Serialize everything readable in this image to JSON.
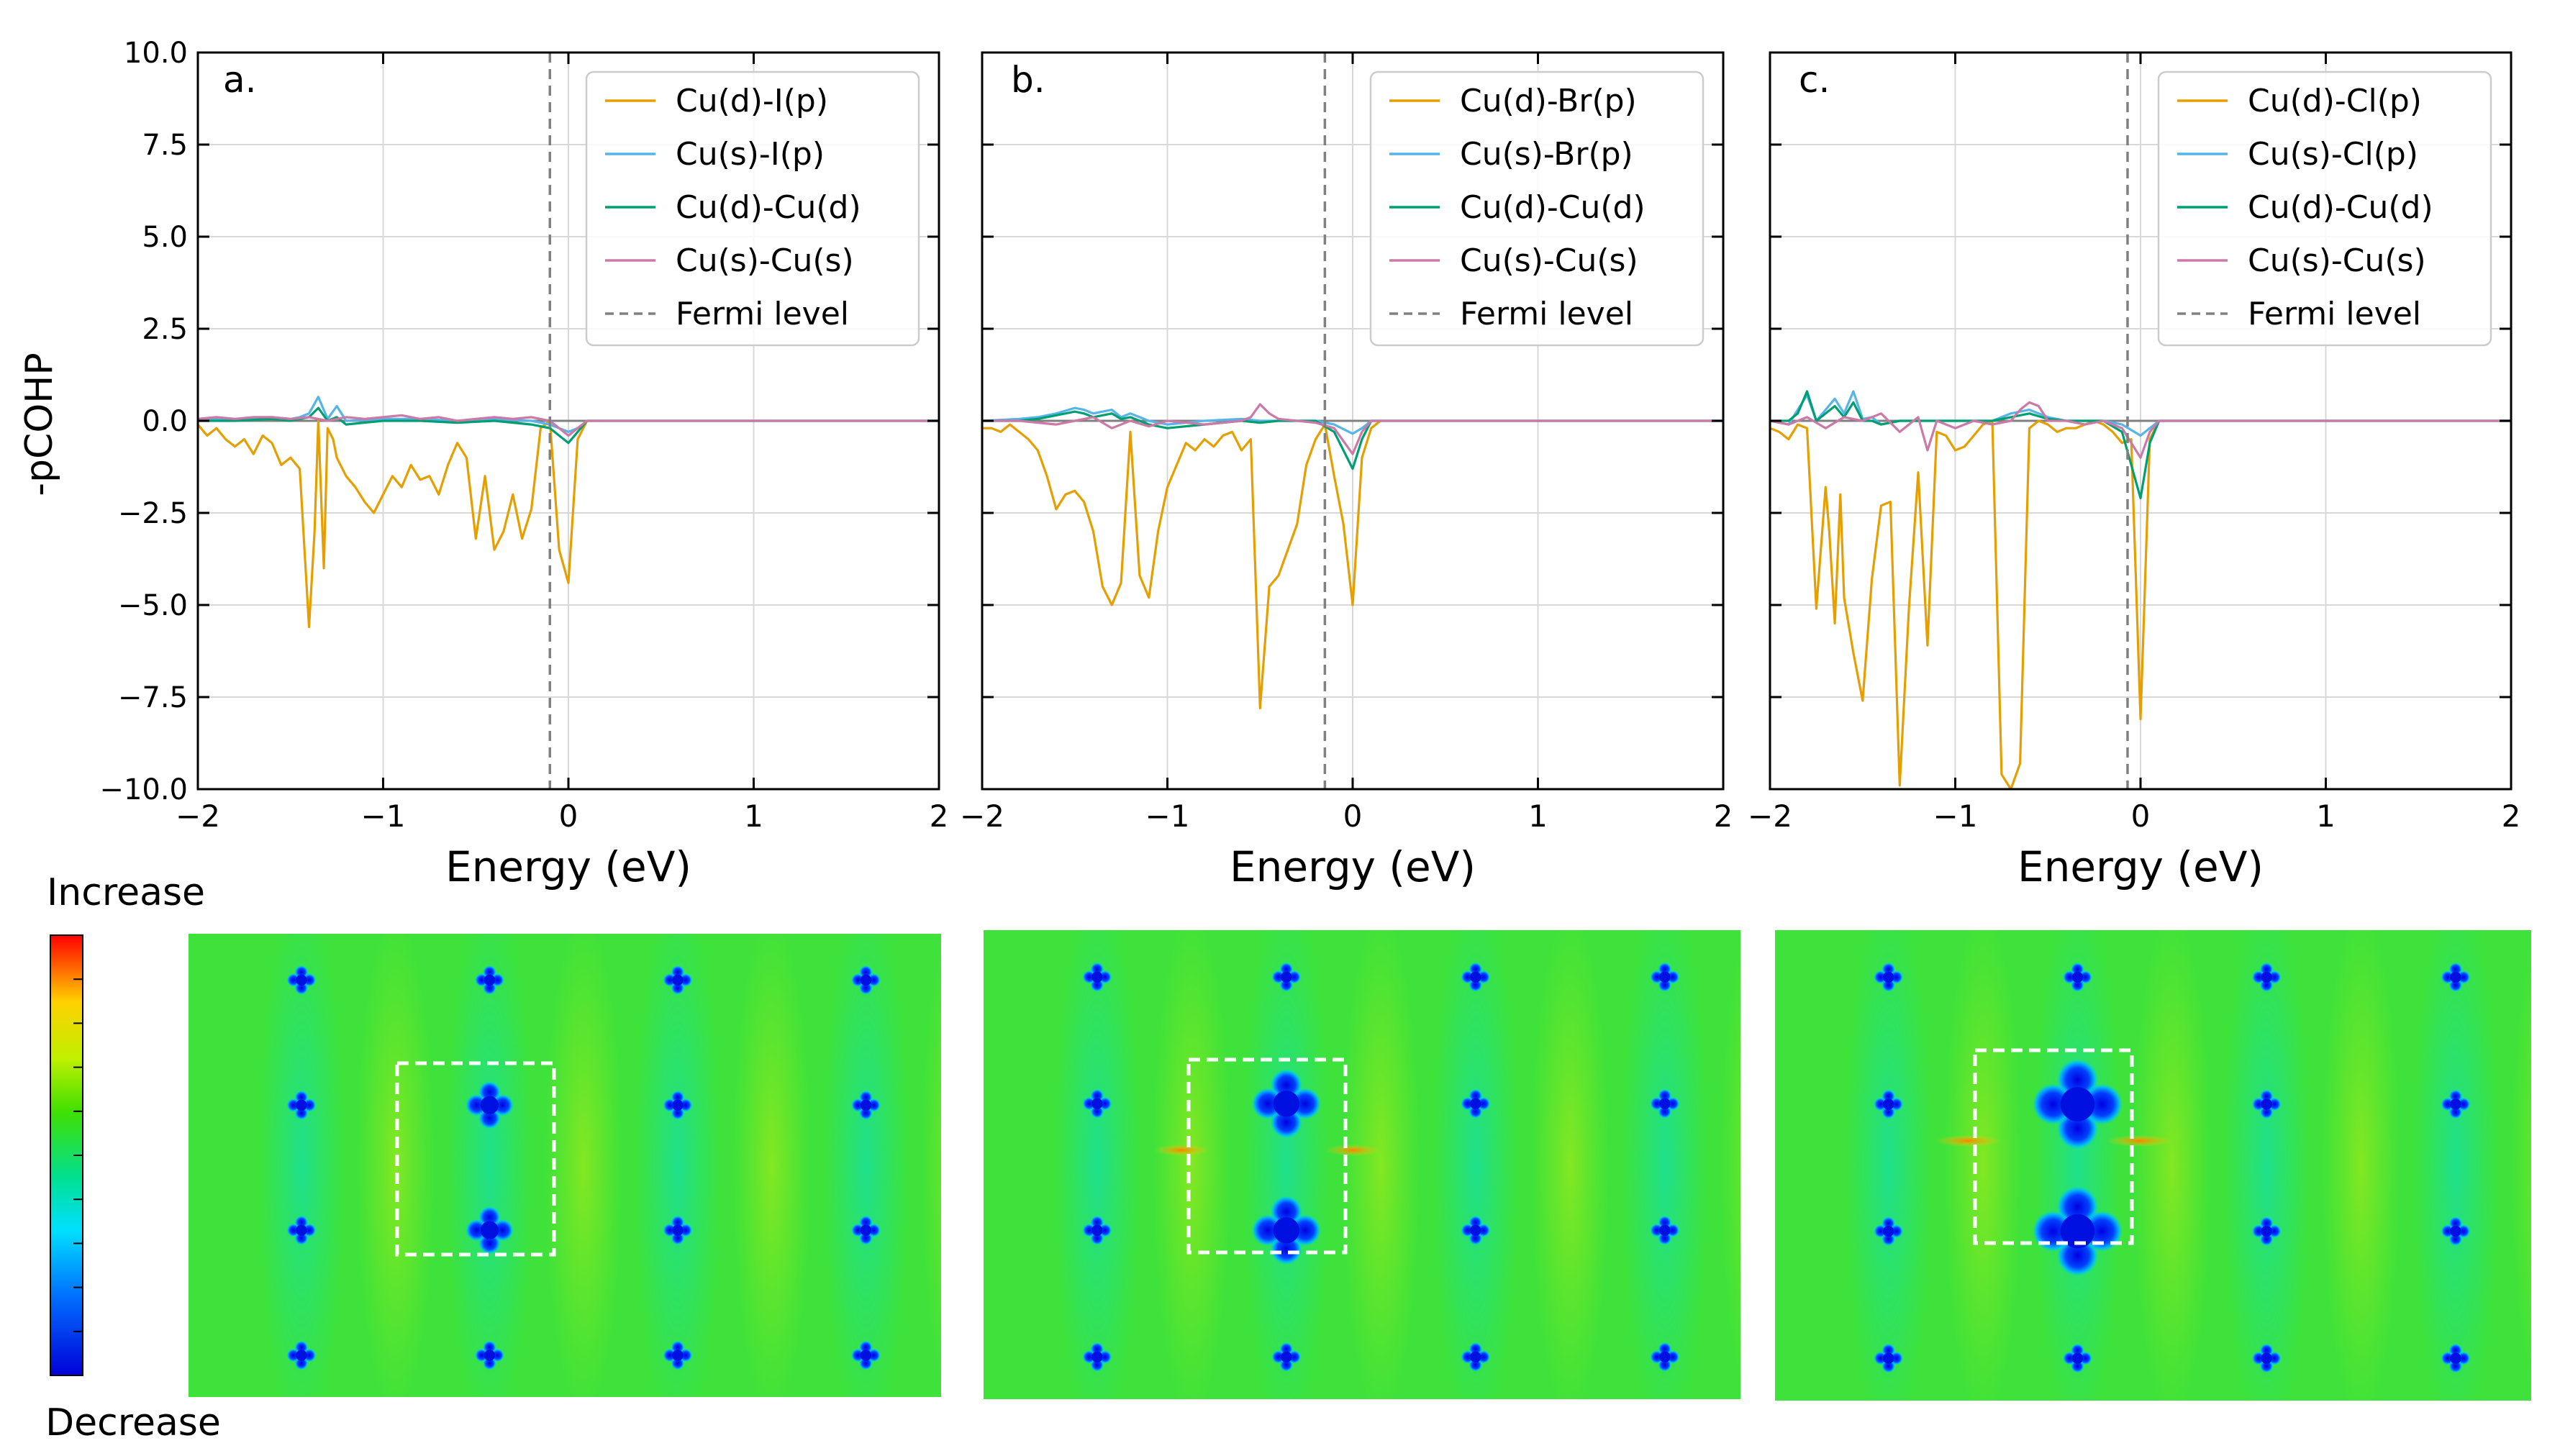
{
  "figure": {
    "ylabel": "-pCOHP",
    "colorbar": {
      "top_label": "Increase",
      "bottom_label": "Decrease"
    },
    "legend_colors": {
      "d_halide": "#E69F00",
      "s_halide": "#56B4E9",
      "d_cu": "#009E73",
      "s_cu": "#CC79A7",
      "fermi": "#808080"
    }
  },
  "chart_data": [
    {
      "type": "line",
      "panel_label": "a.",
      "xlabel": "Energy (eV)",
      "ylabel": "-pCOHP",
      "xlim": [
        -2,
        2
      ],
      "ylim": [
        -10,
        10
      ],
      "x_ticks": [
        "−2",
        "−1",
        "0",
        "1",
        "2"
      ],
      "y_ticks": [
        "10.0",
        "7.5",
        "5.0",
        "2.5",
        "0.0",
        "−2.5",
        "−5.0",
        "−7.5",
        "−10.0"
      ],
      "fermi_level": -0.1,
      "legend": [
        "Cu(d)-I(p)",
        "Cu(s)-I(p)",
        "Cu(d)-Cu(d)",
        "Cu(s)-Cu(s)",
        "Fermi level"
      ],
      "series": [
        {
          "name": "Cu(d)-I(p)",
          "color": "#E69F00",
          "x": [
            -2.0,
            -1.95,
            -1.9,
            -1.85,
            -1.8,
            -1.75,
            -1.7,
            -1.65,
            -1.6,
            -1.55,
            -1.5,
            -1.45,
            -1.4,
            -1.37,
            -1.35,
            -1.32,
            -1.3,
            -1.27,
            -1.25,
            -1.2,
            -1.15,
            -1.1,
            -1.05,
            -1.0,
            -0.95,
            -0.9,
            -0.85,
            -0.8,
            -0.75,
            -0.7,
            -0.65,
            -0.6,
            -0.55,
            -0.5,
            -0.45,
            -0.4,
            -0.35,
            -0.3,
            -0.25,
            -0.2,
            -0.15,
            -0.1,
            -0.05,
            0.0,
            0.05,
            0.1
          ],
          "y": [
            -0.1,
            -0.4,
            -0.2,
            -0.5,
            -0.7,
            -0.5,
            -0.9,
            -0.4,
            -0.6,
            -1.2,
            -1.0,
            -1.3,
            -5.6,
            -3.0,
            0.0,
            -4.0,
            -0.2,
            -0.5,
            -1.0,
            -1.5,
            -1.8,
            -2.2,
            -2.5,
            -2.0,
            -1.5,
            -1.8,
            -1.2,
            -1.6,
            -1.5,
            -2.0,
            -1.2,
            -0.6,
            -1.0,
            -3.2,
            -1.5,
            -3.5,
            -3.0,
            -2.0,
            -3.2,
            -2.4,
            -0.2,
            0.0,
            -3.5,
            -4.4,
            -0.5,
            0.0
          ]
        },
        {
          "name": "Cu(s)-I(p)",
          "color": "#56B4E9",
          "x": [
            -2.0,
            -1.8,
            -1.6,
            -1.5,
            -1.45,
            -1.4,
            -1.35,
            -1.3,
            -1.25,
            -1.2,
            -1.0,
            -0.8,
            -0.6,
            -0.4,
            -0.2,
            -0.1,
            0.0,
            0.05,
            0.1,
            2.0
          ],
          "y": [
            0.05,
            0.05,
            0.1,
            0.05,
            0.1,
            0.2,
            0.65,
            0.05,
            0.4,
            0.0,
            0.05,
            0.05,
            0.0,
            0.05,
            0.0,
            -0.1,
            -0.3,
            -0.2,
            0.0,
            0.0
          ]
        },
        {
          "name": "Cu(d)-Cu(d)",
          "color": "#009E73",
          "x": [
            -2.0,
            -1.8,
            -1.6,
            -1.5,
            -1.45,
            -1.4,
            -1.35,
            -1.3,
            -1.25,
            -1.2,
            -1.0,
            -0.8,
            -0.6,
            -0.4,
            -0.2,
            -0.1,
            0.0,
            0.05,
            0.1,
            2.0
          ],
          "y": [
            0.0,
            0.0,
            0.05,
            0.0,
            0.05,
            0.1,
            0.35,
            0.0,
            0.1,
            -0.1,
            0.0,
            0.0,
            -0.05,
            0.0,
            -0.1,
            -0.2,
            -0.6,
            -0.3,
            0.0,
            0.0
          ]
        },
        {
          "name": "Cu(s)-Cu(s)",
          "color": "#CC79A7",
          "x": [
            -2.0,
            -1.9,
            -1.8,
            -1.7,
            -1.6,
            -1.5,
            -1.4,
            -1.3,
            -1.2,
            -1.1,
            -1.0,
            -0.9,
            -0.8,
            -0.7,
            -0.6,
            -0.5,
            -0.4,
            -0.3,
            -0.2,
            -0.1,
            0.0,
            0.05,
            0.1,
            2.0
          ],
          "y": [
            0.05,
            0.1,
            0.05,
            0.1,
            0.1,
            0.05,
            0.1,
            0.0,
            0.1,
            0.05,
            0.1,
            0.15,
            0.05,
            0.1,
            0.0,
            0.05,
            0.1,
            0.05,
            0.1,
            0.0,
            -0.4,
            -0.2,
            0.0,
            0.0
          ]
        }
      ]
    },
    {
      "type": "line",
      "panel_label": "b.",
      "xlabel": "Energy (eV)",
      "ylabel": "",
      "xlim": [
        -2,
        2
      ],
      "ylim": [
        -10,
        10
      ],
      "x_ticks": [
        "−2",
        "−1",
        "0",
        "1",
        "2"
      ],
      "fermi_level": -0.15,
      "legend": [
        "Cu(d)-Br(p)",
        "Cu(s)-Br(p)",
        "Cu(d)-Cu(d)",
        "Cu(s)-Cu(s)",
        "Fermi level"
      ],
      "series": [
        {
          "name": "Cu(d)-Br(p)",
          "color": "#E69F00",
          "x": [
            -2.0,
            -1.95,
            -1.9,
            -1.85,
            -1.8,
            -1.75,
            -1.7,
            -1.65,
            -1.6,
            -1.55,
            -1.5,
            -1.45,
            -1.4,
            -1.35,
            -1.3,
            -1.25,
            -1.2,
            -1.15,
            -1.1,
            -1.05,
            -1.0,
            -0.95,
            -0.9,
            -0.85,
            -0.8,
            -0.75,
            -0.7,
            -0.65,
            -0.6,
            -0.55,
            -0.5,
            -0.45,
            -0.4,
            -0.35,
            -0.3,
            -0.25,
            -0.2,
            -0.15,
            -0.1,
            -0.05,
            0.0,
            0.05,
            0.1,
            0.15
          ],
          "y": [
            -0.2,
            -0.2,
            -0.3,
            -0.1,
            -0.3,
            -0.5,
            -0.8,
            -1.5,
            -2.4,
            -2.0,
            -1.9,
            -2.2,
            -3.0,
            -4.5,
            -5.0,
            -4.4,
            -0.3,
            -4.2,
            -4.8,
            -3.0,
            -1.8,
            -1.2,
            -0.6,
            -0.8,
            -0.5,
            -0.7,
            -0.4,
            -0.3,
            -0.8,
            -0.5,
            -7.8,
            -4.5,
            -4.2,
            -3.5,
            -2.8,
            -1.2,
            -0.5,
            -0.1,
            -1.5,
            -2.8,
            -5.0,
            -1.0,
            -0.2,
            0.0
          ]
        },
        {
          "name": "Cu(s)-Br(p)",
          "color": "#56B4E9",
          "x": [
            -2.0,
            -1.8,
            -1.7,
            -1.6,
            -1.5,
            -1.45,
            -1.4,
            -1.3,
            -1.25,
            -1.2,
            -1.1,
            -1.0,
            -0.8,
            -0.6,
            -0.5,
            -0.4,
            -0.2,
            -0.1,
            0.0,
            0.05,
            0.1,
            2.0
          ],
          "y": [
            0.0,
            0.05,
            0.1,
            0.2,
            0.35,
            0.3,
            0.2,
            0.3,
            0.1,
            0.2,
            0.0,
            -0.1,
            0.0,
            0.05,
            0.0,
            0.0,
            0.0,
            -0.1,
            -0.35,
            -0.2,
            0.0,
            0.0
          ]
        },
        {
          "name": "Cu(d)-Cu(d)",
          "color": "#009E73",
          "x": [
            -2.0,
            -1.8,
            -1.7,
            -1.6,
            -1.5,
            -1.45,
            -1.4,
            -1.3,
            -1.25,
            -1.2,
            -1.1,
            -1.0,
            -0.8,
            -0.6,
            -0.5,
            -0.4,
            -0.2,
            -0.1,
            0.0,
            0.05,
            0.1,
            2.0
          ],
          "y": [
            0.0,
            0.0,
            0.05,
            0.15,
            0.25,
            0.2,
            0.1,
            0.2,
            0.05,
            0.1,
            -0.1,
            -0.2,
            -0.1,
            0.0,
            -0.05,
            0.0,
            0.0,
            -0.3,
            -1.3,
            -0.5,
            0.0,
            0.0
          ]
        },
        {
          "name": "Cu(s)-Cu(s)",
          "color": "#CC79A7",
          "x": [
            -2.0,
            -1.8,
            -1.6,
            -1.5,
            -1.4,
            -1.3,
            -1.2,
            -1.1,
            -1.0,
            -0.8,
            -0.6,
            -0.55,
            -0.5,
            -0.45,
            -0.4,
            -0.3,
            -0.2,
            -0.1,
            0.0,
            0.05,
            0.1,
            2.0
          ],
          "y": [
            0.0,
            0.0,
            -0.1,
            0.0,
            0.1,
            -0.2,
            0.0,
            -0.15,
            0.0,
            -0.1,
            0.0,
            0.1,
            0.45,
            0.2,
            0.05,
            0.0,
            -0.05,
            -0.2,
            -0.9,
            -0.3,
            0.0,
            0.0
          ]
        }
      ]
    },
    {
      "type": "line",
      "panel_label": "c.",
      "xlabel": "Energy (eV)",
      "ylabel": "",
      "xlim": [
        -2,
        2
      ],
      "ylim": [
        -10,
        10
      ],
      "x_ticks": [
        "−2",
        "−1",
        "0",
        "1",
        "2"
      ],
      "fermi_level": -0.07,
      "legend": [
        "Cu(d)-Cl(p)",
        "Cu(s)-Cl(p)",
        "Cu(d)-Cu(d)",
        "Cu(s)-Cu(s)",
        "Fermi level"
      ],
      "series": [
        {
          "name": "Cu(d)-Cl(p)",
          "color": "#E69F00",
          "x": [
            -2.0,
            -1.95,
            -1.9,
            -1.85,
            -1.8,
            -1.75,
            -1.7,
            -1.68,
            -1.65,
            -1.62,
            -1.6,
            -1.55,
            -1.5,
            -1.45,
            -1.4,
            -1.35,
            -1.3,
            -1.25,
            -1.2,
            -1.15,
            -1.1,
            -1.05,
            -1.0,
            -0.95,
            -0.9,
            -0.85,
            -0.8,
            -0.75,
            -0.7,
            -0.65,
            -0.6,
            -0.55,
            -0.5,
            -0.45,
            -0.4,
            -0.35,
            -0.3,
            -0.25,
            -0.2,
            -0.15,
            -0.1,
            -0.05,
            0.0,
            0.05,
            0.1
          ],
          "y": [
            -0.2,
            -0.3,
            -0.5,
            -0.1,
            -0.2,
            -5.1,
            -1.8,
            -3.0,
            -5.5,
            -2.0,
            -4.8,
            -6.3,
            -7.6,
            -4.3,
            -2.3,
            -2.2,
            -9.9,
            -5.1,
            -1.4,
            -6.1,
            -0.3,
            -0.4,
            -0.8,
            -0.7,
            -0.4,
            -0.1,
            0.0,
            -9.6,
            -10.0,
            -9.3,
            -0.2,
            0.0,
            -0.1,
            -0.3,
            -0.2,
            -0.2,
            -0.1,
            0.0,
            -0.1,
            -0.3,
            -0.6,
            -0.5,
            -8.1,
            -0.5,
            0.0
          ]
        },
        {
          "name": "Cu(s)-Cl(p)",
          "color": "#56B4E9",
          "x": [
            -2.0,
            -1.9,
            -1.85,
            -1.8,
            -1.75,
            -1.7,
            -1.65,
            -1.6,
            -1.55,
            -1.5,
            -1.45,
            -1.4,
            -1.3,
            -1.2,
            -1.0,
            -0.8,
            -0.7,
            -0.6,
            -0.5,
            -0.4,
            -0.2,
            -0.1,
            0.0,
            0.05,
            0.1,
            2.0
          ],
          "y": [
            0.0,
            -0.1,
            0.3,
            0.7,
            0.0,
            0.3,
            0.6,
            0.2,
            0.8,
            0.05,
            0.1,
            -0.1,
            0.0,
            0.0,
            0.0,
            0.0,
            0.2,
            0.3,
            0.1,
            0.0,
            0.0,
            -0.1,
            -0.4,
            -0.2,
            0.0,
            0.0
          ]
        },
        {
          "name": "Cu(d)-Cu(d)",
          "color": "#009E73",
          "x": [
            -2.0,
            -1.9,
            -1.85,
            -1.8,
            -1.75,
            -1.7,
            -1.65,
            -1.6,
            -1.55,
            -1.5,
            -1.45,
            -1.4,
            -1.3,
            -1.2,
            -1.0,
            -0.8,
            -0.7,
            -0.6,
            -0.5,
            -0.4,
            -0.2,
            -0.1,
            0.0,
            0.05,
            0.1,
            2.0
          ],
          "y": [
            0.0,
            0.0,
            0.2,
            0.8,
            0.0,
            0.2,
            0.4,
            0.1,
            0.5,
            0.0,
            0.0,
            -0.1,
            0.0,
            0.0,
            0.0,
            0.0,
            0.1,
            0.2,
            0.05,
            0.0,
            0.0,
            -0.3,
            -2.1,
            -0.6,
            0.0,
            0.0
          ]
        },
        {
          "name": "Cu(s)-Cu(s)",
          "color": "#CC79A7",
          "x": [
            -2.0,
            -1.9,
            -1.8,
            -1.7,
            -1.6,
            -1.5,
            -1.4,
            -1.3,
            -1.2,
            -1.15,
            -1.1,
            -1.0,
            -0.9,
            -0.8,
            -0.7,
            -0.65,
            -0.6,
            -0.55,
            -0.5,
            -0.4,
            -0.3,
            -0.2,
            -0.1,
            0.0,
            0.05,
            0.1,
            2.0
          ],
          "y": [
            0.0,
            -0.1,
            0.1,
            -0.2,
            0.1,
            0.0,
            0.2,
            -0.3,
            0.1,
            -0.8,
            0.0,
            -0.2,
            0.0,
            -0.1,
            0.0,
            0.3,
            0.5,
            0.4,
            0.0,
            0.0,
            -0.1,
            0.0,
            -0.2,
            -1.0,
            -0.3,
            0.0,
            0.0
          ]
        }
      ]
    }
  ]
}
